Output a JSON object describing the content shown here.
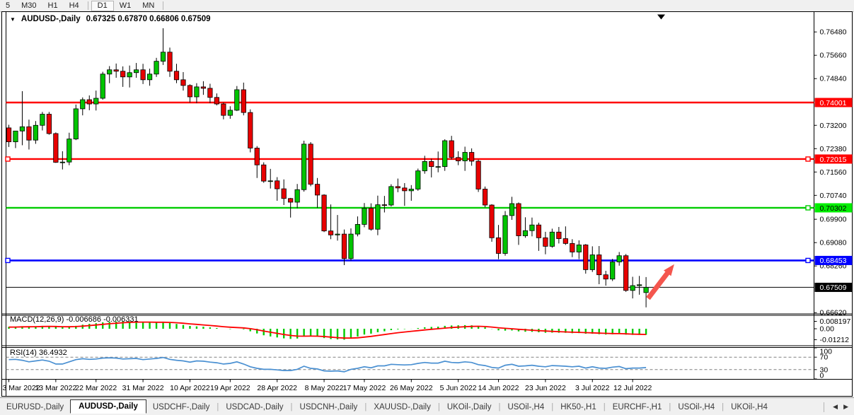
{
  "toolbar": {
    "buttons": [
      "5",
      "M30",
      "H1",
      "H4",
      "D1",
      "W1",
      "MN"
    ],
    "active": "D1",
    "separators_after": [
      3,
      6
    ]
  },
  "chart": {
    "symbol_dropdown_icon": "▼",
    "title": "AUDUSD-,Daily",
    "ohlc": "0.67325 0.67870 0.66806 0.67509",
    "price_axis_ticks": [
      {
        "label": "0.76480",
        "price": 0.7648
      },
      {
        "label": "0.75660",
        "price": 0.7566
      },
      {
        "label": "0.74840",
        "price": 0.7484
      },
      {
        "label": "0.73200",
        "price": 0.732
      },
      {
        "label": "0.72380",
        "price": 0.7238
      },
      {
        "label": "0.71560",
        "price": 0.7156
      },
      {
        "label": "0.70740",
        "price": 0.7074
      },
      {
        "label": "0.69900",
        "price": 0.699
      },
      {
        "label": "0.69080",
        "price": 0.6908
      },
      {
        "label": "0.68260",
        "price": 0.6826
      },
      {
        "label": "0.66620",
        "price": 0.6662
      }
    ],
    "hlines": [
      {
        "name": "resistance-1",
        "label": "0.74001",
        "price": 0.74001,
        "line": "#ff0000",
        "badge": "#ff0000",
        "text": "#ffffff",
        "width": 2.4,
        "anchors": []
      },
      {
        "name": "resistance-2",
        "label": "0.72015",
        "price": 0.72015,
        "line": "#ff0000",
        "badge": "#ff0000",
        "text": "#ffffff",
        "width": 2.4,
        "anchors": [
          "left",
          "right"
        ]
      },
      {
        "name": "support-green",
        "label": "0.70302",
        "price": 0.70302,
        "line": "#00cc00",
        "badge": "#00ee00",
        "text": "#000000",
        "width": 2.4,
        "anchors": [
          "right"
        ]
      },
      {
        "name": "support-blue",
        "label": "0.68453",
        "price": 0.68453,
        "line": "#0000ff",
        "badge": "#0000ff",
        "text": "#ffffff",
        "width": 2.6,
        "anchors": [
          "left",
          "right"
        ]
      }
    ],
    "current_price": {
      "label": "0.67509",
      "price": 0.67509,
      "badge": "#000000",
      "text": "#ffffff"
    },
    "arrow_annotation": {
      "color": "#f4564e",
      "from_idx": 95.3,
      "from_price": 0.6712,
      "to_idx": 99.2,
      "to_price": 0.6832
    }
  },
  "indicators": {
    "macd": {
      "text": "MACD(12,26,9) -0.006686 -0.006331",
      "scale": [
        {
          "label": "0.008197",
          "value": 0.008197
        },
        {
          "label": "0.00",
          "value": 0.0
        },
        {
          "label": "-0.01212",
          "value": -0.01212
        }
      ],
      "bar_color": "#00cc00",
      "signal_color": "#ff0000"
    },
    "rsi": {
      "text": "RSI(14) 36.4932",
      "scale": [
        {
          "label": "100",
          "value": 100,
          "dashed": false
        },
        {
          "label": "70",
          "value": 70,
          "dashed": true
        },
        {
          "label": "30",
          "value": 30,
          "dashed": true
        },
        {
          "label": "0",
          "value": 0,
          "dashed": false
        }
      ],
      "line_color": "#4a90d2"
    }
  },
  "chart_data": {
    "type": "candlestick",
    "title": "AUDUSD-,Daily",
    "ylim": [
      0.6657,
      0.7696
    ],
    "bull_color": "#00c400",
    "bear_color": "#e80000",
    "x_ticks": [
      {
        "i": 0,
        "label": "3 Mar 2022"
      },
      {
        "i": 7,
        "label": "13 Mar 2022"
      },
      {
        "i": 13,
        "label": "22 Mar 2022"
      },
      {
        "i": 20,
        "label": "31 Mar 2022"
      },
      {
        "i": 27,
        "label": "10 Apr 2022"
      },
      {
        "i": 33,
        "label": "19 Apr 2022"
      },
      {
        "i": 40,
        "label": "28 Apr 2022"
      },
      {
        "i": 47,
        "label": "8 May 2022"
      },
      {
        "i": 53,
        "label": "17 May 2022"
      },
      {
        "i": 60,
        "label": "26 May 2022"
      },
      {
        "i": 67,
        "label": "5 Jun 2022"
      },
      {
        "i": 73,
        "label": "14 Jun 2022"
      },
      {
        "i": 80,
        "label": "23 Jun 2022"
      },
      {
        "i": 87,
        "label": "3 Jul 2022"
      },
      {
        "i": 93,
        "label": "12 Jul 2022"
      }
    ],
    "candles": [
      [
        0.7311,
        0.7322,
        0.7244,
        0.7262
      ],
      [
        0.7262,
        0.73,
        0.724,
        0.73
      ],
      [
        0.73,
        0.744,
        0.725,
        0.7315
      ],
      [
        0.7315,
        0.734,
        0.7235,
        0.7268
      ],
      [
        0.7268,
        0.7335,
        0.7255,
        0.732
      ],
      [
        0.732,
        0.7367,
        0.7302,
        0.7359
      ],
      [
        0.7359,
        0.7367,
        0.7287,
        0.7291
      ],
      [
        0.7291,
        0.7295,
        0.7188,
        0.719
      ],
      [
        0.719,
        0.7229,
        0.7165,
        0.7191
      ],
      [
        0.7191,
        0.7294,
        0.718,
        0.7272
      ],
      [
        0.7272,
        0.7393,
        0.7268,
        0.7378
      ],
      [
        0.7378,
        0.7418,
        0.7355,
        0.741
      ],
      [
        0.741,
        0.7425,
        0.7373,
        0.7395
      ],
      [
        0.7395,
        0.7442,
        0.7372,
        0.7415
      ],
      [
        0.7415,
        0.7508,
        0.741,
        0.75
      ],
      [
        0.75,
        0.7528,
        0.7468,
        0.7515
      ],
      [
        0.7515,
        0.7537,
        0.7487,
        0.751
      ],
      [
        0.751,
        0.7527,
        0.7455,
        0.749
      ],
      [
        0.749,
        0.753,
        0.7453,
        0.7505
      ],
      [
        0.7505,
        0.7539,
        0.7487,
        0.7515
      ],
      [
        0.7515,
        0.7536,
        0.7465,
        0.748
      ],
      [
        0.748,
        0.7519,
        0.7459,
        0.75
      ],
      [
        0.75,
        0.7557,
        0.749,
        0.7545
      ],
      [
        0.7545,
        0.7661,
        0.7532,
        0.7577
      ],
      [
        0.7577,
        0.7593,
        0.749,
        0.751
      ],
      [
        0.751,
        0.7536,
        0.7468,
        0.748
      ],
      [
        0.748,
        0.7507,
        0.7442,
        0.746
      ],
      [
        0.746,
        0.7464,
        0.74,
        0.742
      ],
      [
        0.742,
        0.7468,
        0.7398,
        0.7455
      ],
      [
        0.7455,
        0.7475,
        0.7427,
        0.745
      ],
      [
        0.745,
        0.7466,
        0.7398,
        0.7418
      ],
      [
        0.7418,
        0.7432,
        0.739,
        0.7395
      ],
      [
        0.7395,
        0.74,
        0.7341,
        0.7355
      ],
      [
        0.7355,
        0.7387,
        0.7343,
        0.7373
      ],
      [
        0.7373,
        0.7458,
        0.737,
        0.7445
      ],
      [
        0.7445,
        0.747,
        0.7355,
        0.7365
      ],
      [
        0.7365,
        0.7376,
        0.7225,
        0.724
      ],
      [
        0.724,
        0.7247,
        0.7135,
        0.7181
      ],
      [
        0.7181,
        0.719,
        0.7118,
        0.7124
      ],
      [
        0.7124,
        0.7167,
        0.7098,
        0.7125
      ],
      [
        0.7125,
        0.7138,
        0.7055,
        0.7097
      ],
      [
        0.7097,
        0.713,
        0.704,
        0.7063
      ],
      [
        0.7063,
        0.7065,
        0.6996,
        0.705
      ],
      [
        0.705,
        0.7114,
        0.7029,
        0.7094
      ],
      [
        0.7094,
        0.7266,
        0.7087,
        0.7254
      ],
      [
        0.7254,
        0.7261,
        0.7106,
        0.7113
      ],
      [
        0.7113,
        0.7135,
        0.703,
        0.7075
      ],
      [
        0.7075,
        0.7078,
        0.6945,
        0.6949
      ],
      [
        0.6949,
        0.7042,
        0.692,
        0.6935
      ],
      [
        0.6935,
        0.7005,
        0.6915,
        0.6938
      ],
      [
        0.6938,
        0.6954,
        0.6829,
        0.6852
      ],
      [
        0.6852,
        0.6958,
        0.6845,
        0.6938
      ],
      [
        0.6938,
        0.7,
        0.693,
        0.6972
      ],
      [
        0.6972,
        0.7047,
        0.6962,
        0.7029
      ],
      [
        0.7029,
        0.7046,
        0.695,
        0.6955
      ],
      [
        0.6955,
        0.7073,
        0.6934,
        0.7041
      ],
      [
        0.7041,
        0.7072,
        0.7014,
        0.704
      ],
      [
        0.704,
        0.7113,
        0.7035,
        0.7105
      ],
      [
        0.7105,
        0.7133,
        0.7085,
        0.71
      ],
      [
        0.71,
        0.7117,
        0.7037,
        0.709
      ],
      [
        0.709,
        0.711,
        0.7055,
        0.7096
      ],
      [
        0.7096,
        0.7168,
        0.709,
        0.716
      ],
      [
        0.716,
        0.7213,
        0.715,
        0.7193
      ],
      [
        0.7193,
        0.7203,
        0.7137,
        0.7175
      ],
      [
        0.7175,
        0.7228,
        0.7155,
        0.7175
      ],
      [
        0.7175,
        0.7271,
        0.716,
        0.7266
      ],
      [
        0.7266,
        0.7283,
        0.72,
        0.7207
      ],
      [
        0.7207,
        0.7229,
        0.718,
        0.7195
      ],
      [
        0.7195,
        0.7245,
        0.716,
        0.7225
      ],
      [
        0.7225,
        0.7239,
        0.7178,
        0.7194
      ],
      [
        0.7194,
        0.7199,
        0.7086,
        0.7096
      ],
      [
        0.7096,
        0.7105,
        0.7032,
        0.704
      ],
      [
        0.704,
        0.7043,
        0.6911,
        0.6925
      ],
      [
        0.6925,
        0.697,
        0.685,
        0.687
      ],
      [
        0.687,
        0.7019,
        0.6862,
        0.7003
      ],
      [
        0.7003,
        0.7069,
        0.6988,
        0.7045
      ],
      [
        0.7045,
        0.7049,
        0.69,
        0.6932
      ],
      [
        0.6932,
        0.6997,
        0.6925,
        0.695
      ],
      [
        0.695,
        0.6996,
        0.693,
        0.697
      ],
      [
        0.697,
        0.6978,
        0.6879,
        0.6925
      ],
      [
        0.6925,
        0.6946,
        0.6867,
        0.6895
      ],
      [
        0.6895,
        0.6957,
        0.689,
        0.6945
      ],
      [
        0.6945,
        0.6963,
        0.6905,
        0.6922
      ],
      [
        0.6922,
        0.6965,
        0.69,
        0.6905
      ],
      [
        0.6905,
        0.692,
        0.6857,
        0.6875
      ],
      [
        0.6875,
        0.6916,
        0.685,
        0.69
      ],
      [
        0.69,
        0.6903,
        0.6799,
        0.6813
      ],
      [
        0.6813,
        0.6895,
        0.6805,
        0.6865
      ],
      [
        0.6865,
        0.6896,
        0.6762,
        0.6795
      ],
      [
        0.6795,
        0.6809,
        0.6757,
        0.678
      ],
      [
        0.678,
        0.6851,
        0.6773,
        0.684
      ],
      [
        0.684,
        0.6875,
        0.6827,
        0.6862
      ],
      [
        0.6862,
        0.6868,
        0.6735,
        0.674
      ],
      [
        0.674,
        0.6788,
        0.6712,
        0.6757
      ],
      [
        0.6757,
        0.6791,
        0.6725,
        0.676
      ],
      [
        0.67325,
        0.6787,
        0.66806,
        0.67509
      ]
    ],
    "macd_main": [
      0.0021,
      0.0024,
      0.0028,
      0.0026,
      0.0028,
      0.0032,
      0.003,
      0.0022,
      0.0016,
      0.002,
      0.0032,
      0.0045,
      0.0054,
      0.0061,
      0.007,
      0.0077,
      0.008,
      0.0081,
      0.0082,
      0.0081,
      0.0075,
      0.0071,
      0.007,
      0.0072,
      0.0064,
      0.0053,
      0.0042,
      0.0031,
      0.0026,
      0.0022,
      0.0015,
      0.0008,
      0.0,
      -0.0004,
      0.0,
      -0.0006,
      -0.0028,
      -0.0052,
      -0.0072,
      -0.0085,
      -0.0096,
      -0.0106,
      -0.0112,
      -0.0108,
      -0.0084,
      -0.008,
      -0.0085,
      -0.0103,
      -0.0114,
      -0.0118,
      -0.0121,
      -0.0104,
      -0.0086,
      -0.0064,
      -0.0054,
      -0.0038,
      -0.0028,
      -0.0015,
      -0.0007,
      -0.0004,
      -0.0001,
      0.0008,
      0.0016,
      0.002,
      0.0023,
      0.0032,
      0.0036,
      0.0038,
      0.004,
      0.0038,
      0.0028,
      0.0016,
      -0.0002,
      -0.0018,
      -0.0021,
      -0.0019,
      -0.0029,
      -0.0033,
      -0.0034,
      -0.0039,
      -0.0044,
      -0.0043,
      -0.0044,
      -0.0045,
      -0.0049,
      -0.0048,
      -0.0055,
      -0.0055,
      -0.006,
      -0.0064,
      -0.0061,
      -0.0058,
      -0.0065,
      -0.0068,
      -0.0068,
      -0.006686
    ],
    "macd_signal": [
      0.0018,
      0.0019,
      0.0021,
      0.0022,
      0.0023,
      0.0025,
      0.0026,
      0.0025,
      0.0023,
      0.0022,
      0.0024,
      0.0029,
      0.0035,
      0.0041,
      0.0048,
      0.0055,
      0.0061,
      0.0066,
      0.007,
      0.0073,
      0.0073,
      0.0073,
      0.0072,
      0.0072,
      0.007,
      0.0066,
      0.0061,
      0.0054,
      0.0048,
      0.0042,
      0.0036,
      0.003,
      0.0023,
      0.0017,
      0.0013,
      0.0009,
      0.0001,
      -0.0011,
      -0.0025,
      -0.0038,
      -0.0051,
      -0.0063,
      -0.0074,
      -0.0081,
      -0.0082,
      -0.0081,
      -0.0082,
      -0.0086,
      -0.0092,
      -0.0098,
      -0.0103,
      -0.0103,
      -0.01,
      -0.0092,
      -0.0084,
      -0.0074,
      -0.0064,
      -0.0054,
      -0.0044,
      -0.0036,
      -0.0028,
      -0.0021,
      -0.0013,
      -0.0006,
      0.0,
      0.0007,
      0.0013,
      0.0018,
      0.0023,
      0.0026,
      0.0027,
      0.0024,
      0.0019,
      0.0011,
      0.0005,
      0.0,
      -0.0006,
      -0.0011,
      -0.0016,
      -0.0021,
      -0.0025,
      -0.0029,
      -0.0032,
      -0.0035,
      -0.0038,
      -0.004,
      -0.0043,
      -0.0045,
      -0.0048,
      -0.0051,
      -0.0053,
      -0.0054,
      -0.0056,
      -0.0059,
      -0.0061,
      -0.006331
    ],
    "rsi": [
      62,
      63,
      60,
      55,
      58,
      61,
      57,
      48,
      48,
      55,
      62,
      65,
      63,
      64,
      67,
      68,
      67,
      64,
      65,
      66,
      62,
      64,
      66,
      69,
      63,
      60,
      58,
      54,
      58,
      57,
      54,
      52,
      48,
      50,
      55,
      48,
      39,
      34,
      31,
      31,
      29,
      27,
      27,
      31,
      41,
      34,
      32,
      26,
      25,
      26,
      23,
      31,
      34,
      39,
      36,
      42,
      42,
      47,
      46,
      45,
      46,
      50,
      53,
      51,
      51,
      57,
      53,
      52,
      55,
      53,
      46,
      43,
      37,
      35,
      44,
      47,
      41,
      42,
      44,
      41,
      39,
      43,
      42,
      41,
      39,
      41,
      35,
      39,
      35,
      34,
      38,
      40,
      33,
      35,
      35,
      36.4932
    ]
  },
  "tabs": {
    "items": [
      "EURUSD-,Daily",
      "AUDUSD-,Daily",
      "USDCHF-,Daily",
      "USDCAD-,Daily",
      "USDCNH-,Daily",
      "XAUUSD-,Daily",
      "UKOil-,Daily",
      "USOil-,H4",
      "HK50-,H1",
      "EURCHF-,H1",
      "USOil-,H4",
      "UKOil-,H4"
    ],
    "active_index": 1,
    "scroll_left_icon": "◀",
    "scroll_right_icon": "▶"
  }
}
